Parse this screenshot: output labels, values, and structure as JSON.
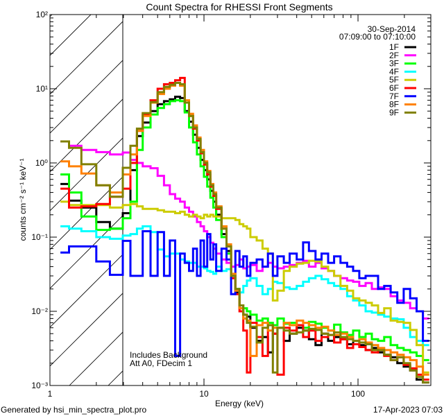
{
  "chart_data": {
    "type": "line",
    "title": "Count Spectra for RHESSI Front Segments",
    "xlabel": "Energy (keV)",
    "ylabel": "counts cm⁻² s⁻¹ keV⁻¹",
    "xscale": "log",
    "yscale": "log",
    "xlim": [
      1,
      297
    ],
    "ylim": [
      0.001,
      100
    ],
    "x_ticks": [
      {
        "value": 1,
        "label": "1"
      },
      {
        "value": 10,
        "label": "10"
      },
      {
        "value": 100,
        "label": "100"
      }
    ],
    "y_ticks": [
      {
        "value": 0.001,
        "label": "10⁻³"
      },
      {
        "value": 0.01,
        "label": "10⁻²"
      },
      {
        "value": 0.1,
        "label": "10⁻¹"
      },
      {
        "value": 1,
        "label": "10⁰"
      },
      {
        "value": 10,
        "label": "10¹"
      },
      {
        "value": 100,
        "label": "10²"
      }
    ],
    "excluded_region_keV": [
      1,
      3
    ],
    "date": "30-Sep-2014",
    "time_range": "07:09:00 to 07:10:00",
    "annotations": [
      "Includes Background",
      "Att A0, FDecim 1"
    ],
    "legend_position": "top-right",
    "energy_edges_keV": [
      1.17,
      1.33,
      1.6,
      2.0,
      2.45,
      2.97,
      3.33,
      3.67,
      4,
      4.5,
      5,
      5.5,
      6,
      6.5,
      7,
      7.5,
      8,
      8.5,
      9,
      9.5,
      10,
      10.5,
      11,
      11.5,
      12,
      13,
      14,
      15,
      16,
      17,
      18,
      19,
      20,
      22,
      24,
      26,
      28,
      30,
      33,
      36,
      40,
      44,
      48,
      53,
      58,
      64,
      70,
      77,
      85,
      93,
      102,
      112,
      123,
      135,
      148,
      163,
      180,
      198,
      218,
      240,
      264,
      290
    ],
    "series": [
      {
        "name": "1F",
        "color": "#000000",
        "values": [
          0.52,
          0.31,
          0.25,
          0.16,
          0.13,
          0.21,
          0.8,
          2.3,
          3.5,
          5,
          6.2,
          6.8,
          7.2,
          7.8,
          7.5,
          5.0,
          3.6,
          2.4,
          1.6,
          1.1,
          0.8,
          0.6,
          0.42,
          0.3,
          0.2,
          0.11,
          0.065,
          0.03,
          0.018,
          0.011,
          0.009,
          0.0085,
          0.006,
          0.004,
          0.0045,
          0.0028,
          0.005,
          0.006,
          0.004,
          0.005,
          0.006,
          0.0055,
          0.0042,
          0.0035,
          0.005,
          0.004,
          0.0045,
          0.0042,
          0.0036,
          0.004,
          0.0035,
          0.003,
          0.0032,
          0.0028,
          0.0026,
          0.0024,
          0.002,
          0.0018,
          0.0016,
          0.0012,
          0.0011
        ]
      },
      {
        "name": "2F",
        "color": "#ff00ff",
        "values": [
          1.95,
          1.7,
          1.5,
          1.4,
          1.3,
          1.38,
          1.1,
          1.0,
          0.9,
          0.85,
          0.67,
          0.5,
          0.38,
          0.33,
          0.3,
          0.25,
          0.22,
          0.19,
          0.16,
          0.14,
          0.12,
          0.1,
          0.084,
          0.07,
          0.06,
          0.05,
          0.045,
          0.04,
          0.042,
          0.05,
          0.038,
          0.04,
          0.042,
          0.035,
          0.04,
          0.045,
          0.04,
          0.038,
          0.04,
          0.042,
          0.045,
          0.048,
          0.04,
          0.045,
          0.038,
          0.035,
          0.03,
          0.028,
          0.026,
          0.025,
          0.022,
          0.024,
          0.02,
          0.021,
          0.02,
          0.016,
          0.014,
          0.013,
          0.011,
          0.01,
          0.008
        ]
      },
      {
        "name": "3F",
        "color": "#00ff00",
        "values": [
          0.7,
          0.4,
          0.19,
          0.125,
          0.13,
          0.18,
          0.3,
          1.5,
          3.0,
          4.5,
          5.5,
          6.2,
          6.8,
          7.0,
          6.8,
          4.8,
          3.0,
          1.9,
          1.3,
          0.9,
          0.65,
          0.48,
          0.34,
          0.25,
          0.17,
          0.1,
          0.06,
          0.03,
          0.02,
          0.012,
          0.011,
          0.01,
          0.009,
          0.0075,
          0.008,
          0.007,
          0.0065,
          0.008,
          0.0068,
          0.007,
          0.0065,
          0.006,
          0.0072,
          0.0068,
          0.006,
          0.0055,
          0.0066,
          0.0052,
          0.0048,
          0.0055,
          0.0045,
          0.005,
          0.0042,
          0.004,
          0.0045,
          0.0035,
          0.0032,
          0.003,
          0.0028,
          0.0025,
          0.0022
        ]
      },
      {
        "name": "4F",
        "color": "#00ffff",
        "values": [
          0.14,
          0.13,
          0.12,
          0.1,
          0.095,
          0.105,
          0.11,
          0.13,
          0.14,
          0.117,
          0.068,
          0.055,
          0.06,
          0.06,
          0.05,
          0.047,
          0.045,
          0.045,
          0.04,
          0.04,
          0.038,
          0.035,
          0.034,
          0.032,
          0.04,
          0.035,
          0.037,
          0.03,
          0.02,
          0.018,
          0.022,
          0.026,
          0.028,
          0.022,
          0.017,
          0.02,
          0.025,
          0.024,
          0.021,
          0.02,
          0.022,
          0.025,
          0.028,
          0.03,
          0.027,
          0.024,
          0.022,
          0.02,
          0.016,
          0.014,
          0.012,
          0.01,
          0.0096,
          0.009,
          0.0085,
          0.008,
          0.0078,
          0.006,
          0.0045,
          0.004,
          0.0035
        ]
      },
      {
        "name": "5F",
        "color": "#cccc00",
        "values": [
          0.3,
          0.27,
          0.27,
          0.27,
          0.25,
          0.27,
          0.28,
          0.26,
          0.24,
          0.24,
          0.23,
          0.22,
          0.22,
          0.21,
          0.22,
          0.2,
          0.19,
          0.2,
          0.19,
          0.18,
          0.2,
          0.19,
          0.2,
          0.19,
          0.19,
          0.18,
          0.18,
          0.18,
          0.17,
          0.15,
          0.14,
          0.13,
          0.1,
          0.09,
          0.07,
          0.06,
          0.014,
          0.019,
          0.035,
          0.04,
          0.044,
          0.045,
          0.048,
          0.047,
          0.04,
          0.035,
          0.03,
          0.022,
          0.019,
          0.015,
          0.014,
          0.013,
          0.012,
          0.0095,
          0.011,
          0.0075,
          0.0072,
          0.007,
          0.0056,
          0.0035,
          0.0015
        ]
      },
      {
        "name": "6F",
        "color": "#ff0000",
        "values": [
          0.45,
          0.25,
          0.26,
          0.28,
          0.35,
          0.45,
          1.0,
          2.7,
          4.5,
          7,
          10,
          11.5,
          12,
          13,
          14,
          6.5,
          4.3,
          2.9,
          2.0,
          1.35,
          0.95,
          0.7,
          0.48,
          0.36,
          0.24,
          0.13,
          0.075,
          0.028,
          0.017,
          0.01,
          0.0055,
          0.0015,
          0.007,
          0.0045,
          0.0025,
          0.0065,
          0.005,
          0.0014,
          0.006,
          0.0055,
          0.0065,
          0.0045,
          0.0055,
          0.004,
          0.0045,
          0.0048,
          0.0038,
          0.0042,
          0.0032,
          0.0036,
          0.0033,
          0.003,
          0.0028,
          0.003,
          0.0025,
          0.0022,
          0.0024,
          0.0019,
          0.0017,
          0.0014,
          0.0012
        ]
      },
      {
        "name": "7F",
        "color": "#0000ff",
        "values": [
          0.062,
          0.075,
          0.075,
          0.047,
          0.031,
          0.089,
          0.03,
          0.03,
          0.12,
          0.03,
          0.117,
          0.03,
          0.09,
          0.0025,
          0.06,
          0.045,
          0.035,
          0.07,
          0.03,
          0.09,
          0.04,
          0.11,
          0.05,
          0.08,
          0.035,
          0.07,
          0.05,
          0.017,
          0.065,
          0.04,
          0.055,
          0.03,
          0.045,
          0.05,
          0.04,
          0.06,
          0.03,
          0.055,
          0.045,
          0.06,
          0.05,
          0.085,
          0.065,
          0.05,
          0.06,
          0.045,
          0.055,
          0.045,
          0.04,
          0.035,
          0.028,
          0.03,
          0.03,
          0.02,
          0.022,
          0.018,
          0.013,
          0.02,
          0.015,
          0.01,
          0.004
        ]
      },
      {
        "name": "8F",
        "color": "#ff8000",
        "values": [
          1.05,
          0.9,
          0.72,
          0.5,
          0.4,
          0.7,
          1.3,
          2.7,
          4.3,
          6.5,
          8.5,
          10,
          11,
          12,
          11,
          7,
          4.6,
          3.2,
          2.2,
          1.5,
          1.05,
          0.78,
          0.52,
          0.4,
          0.26,
          0.14,
          0.08,
          0.032,
          0.019,
          0.011,
          0.008,
          0.0075,
          0.0025,
          0.0065,
          0.007,
          0.0055,
          0.006,
          0.006,
          0.007,
          0.0065,
          0.0075,
          0.007,
          0.0065,
          0.006,
          0.0062,
          0.0055,
          0.0048,
          0.005,
          0.0045,
          0.004,
          0.0042,
          0.0038,
          0.0035,
          0.0032,
          0.003,
          0.0028,
          0.0026,
          0.0024,
          0.0022,
          0.0018,
          0.0014
        ]
      },
      {
        "name": "9F",
        "color": "#808000",
        "values": [
          1.95,
          1.6,
          0.96,
          0.5,
          0.35,
          0.86,
          1.7,
          2.9,
          4.7,
          6.6,
          9.0,
          10.6,
          11.3,
          12,
          11.5,
          6.5,
          4.3,
          3.0,
          2.1,
          1.4,
          1.0,
          0.75,
          0.5,
          0.38,
          0.25,
          0.13,
          0.075,
          0.03,
          0.02,
          0.012,
          0.009,
          0.007,
          0.0062,
          0.0038,
          0.006,
          0.0065,
          0.0015,
          0.006,
          0.0055,
          0.005,
          0.0052,
          0.0055,
          0.0058,
          0.0056,
          0.005,
          0.0048,
          0.0052,
          0.0045,
          0.0042,
          0.004,
          0.0038,
          0.0036,
          0.003,
          0.003,
          0.0026,
          0.0022,
          0.0024,
          0.002,
          0.0016,
          0.0013,
          0.0011
        ]
      }
    ]
  },
  "footer": {
    "generator": "Generated by hsi_min_spectra_plot.pro",
    "timestamp": "17-Apr-2023 07:03"
  }
}
